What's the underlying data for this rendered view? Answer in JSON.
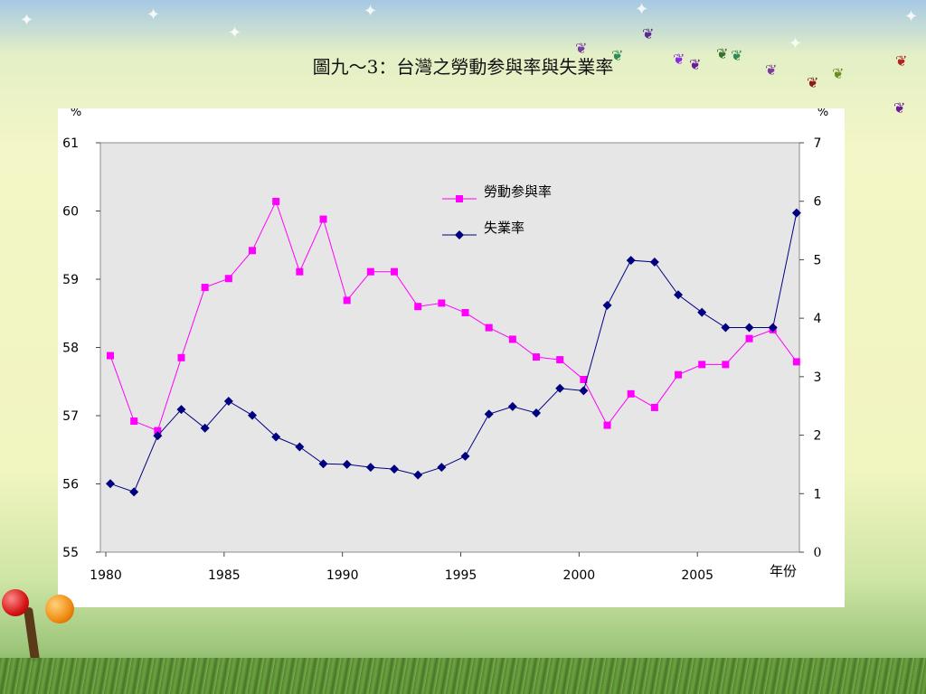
{
  "title": "圖九～3：台灣之勞動参與率與失業率",
  "chart_data": {
    "type": "line",
    "x": [
      1980,
      1981,
      1982,
      1983,
      1984,
      1985,
      1986,
      1987,
      1988,
      1989,
      1990,
      1991,
      1992,
      1993,
      1994,
      1995,
      1996,
      1997,
      1998,
      1999,
      2000,
      2001,
      2002,
      2003,
      2004,
      2005,
      2006,
      2007,
      2008,
      2009
    ],
    "xticks": [
      "1980",
      "1985",
      "1990",
      "1995",
      "2000",
      "2005"
    ],
    "xtick_values": [
      1980,
      1985,
      1990,
      1995,
      2000,
      2005
    ],
    "xlabel": "年份",
    "left_axis": {
      "unit": "%",
      "ylim": [
        55,
        61
      ],
      "ticks": [
        "55",
        "56",
        "57",
        "58",
        "59",
        "60",
        "61"
      ]
    },
    "right_axis": {
      "unit": "%",
      "ylim": [
        0,
        7
      ],
      "ticks": [
        "0",
        "1",
        "2",
        "3",
        "4",
        "5",
        "6",
        "7"
      ]
    },
    "legend": "upper-center",
    "grid": false,
    "series": [
      {
        "name": "勞動参與率",
        "axis": "left",
        "color": "#ff00ff",
        "marker": "square",
        "values": [
          57.88,
          56.92,
          56.78,
          57.85,
          58.88,
          59.01,
          59.42,
          60.14,
          59.11,
          59.88,
          58.69,
          59.11,
          59.11,
          58.6,
          58.65,
          58.51,
          58.29,
          58.12,
          57.86,
          57.82,
          57.53,
          56.86,
          57.32,
          57.12,
          57.6,
          57.75,
          57.75,
          58.13,
          58.26,
          57.79
        ]
      },
      {
        "name": "失業率",
        "axis": "right",
        "color": "#000080",
        "marker": "diamond",
        "values": [
          1.17,
          1.03,
          1.99,
          2.44,
          2.12,
          2.58,
          2.34,
          1.97,
          1.8,
          1.51,
          1.5,
          1.45,
          1.42,
          1.32,
          1.45,
          1.64,
          2.36,
          2.49,
          2.38,
          2.8,
          2.76,
          4.22,
          4.99,
          4.96,
          4.4,
          4.1,
          3.84,
          3.84,
          3.84,
          5.8
        ]
      }
    ]
  }
}
